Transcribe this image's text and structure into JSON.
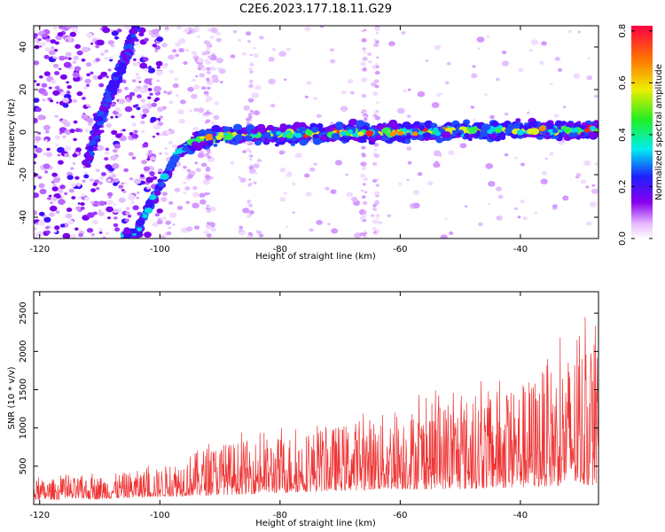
{
  "title": "C2E6.2023.177.18.11.G29",
  "chart_data": [
    {
      "type": "heatmap",
      "xlabel": "Height of straight line (km)",
      "ylabel": "Frequency (Hz)",
      "xlim": [
        -121,
        -27
      ],
      "ylim": [
        -50,
        50
      ],
      "xticks": [
        -120,
        -100,
        -80,
        -60,
        -40
      ],
      "yticks": [
        -40,
        -20,
        0,
        20,
        40
      ],
      "colorbar": {
        "label": "Normalized spectral amplitude",
        "range": [
          0,
          0.82
        ],
        "ticks": [
          "0.0",
          "0.2",
          "0.4",
          "0.6",
          "0.8"
        ]
      },
      "trace": {
        "description_points": [
          {
            "x": -121,
            "y": -55
          },
          {
            "x": -104,
            "y": -48
          },
          {
            "x": -100,
            "y": -25
          },
          {
            "x": -97,
            "y": -10
          },
          {
            "x": -94,
            "y": -4
          },
          {
            "x": -90,
            "y": -2
          },
          {
            "x": -80,
            "y": -1
          },
          {
            "x": -60,
            "y": 0
          },
          {
            "x": -40,
            "y": 1
          },
          {
            "x": -27,
            "y": 1
          }
        ],
        "branch_points": [
          {
            "x": -112,
            "y": -15
          },
          {
            "x": -110,
            "y": 5
          },
          {
            "x": -108,
            "y": 20
          },
          {
            "x": -105,
            "y": 40
          },
          {
            "x": -104,
            "y": 50
          }
        ]
      }
    },
    {
      "type": "line",
      "xlabel": "Height of straight line (km)",
      "ylabel": "SNR (10 * v/v)",
      "xlim": [
        -121,
        -27
      ],
      "ylim": [
        0,
        2780
      ],
      "xticks": [
        -120,
        -100,
        -80,
        -60,
        -40
      ],
      "yticks": [
        500,
        1000,
        1500,
        2000,
        2500
      ],
      "series": [
        {
          "color": "#ee3333",
          "envelope": [
            {
              "x": -121,
              "lo": 60,
              "hi": 320
            },
            {
              "x": -110,
              "lo": 70,
              "hi": 380
            },
            {
              "x": -100,
              "lo": 100,
              "hi": 480
            },
            {
              "x": -92,
              "lo": 120,
              "hi": 780
            },
            {
              "x": -80,
              "lo": 150,
              "hi": 900
            },
            {
              "x": -70,
              "lo": 180,
              "hi": 1050
            },
            {
              "x": -60,
              "lo": 200,
              "hi": 1250
            },
            {
              "x": -50,
              "lo": 200,
              "hi": 1400
            },
            {
              "x": -40,
              "lo": 220,
              "hi": 1600
            },
            {
              "x": -32,
              "lo": 250,
              "hi": 2000
            },
            {
              "x": -27,
              "lo": 250,
              "hi": 2300
            }
          ]
        }
      ]
    }
  ]
}
